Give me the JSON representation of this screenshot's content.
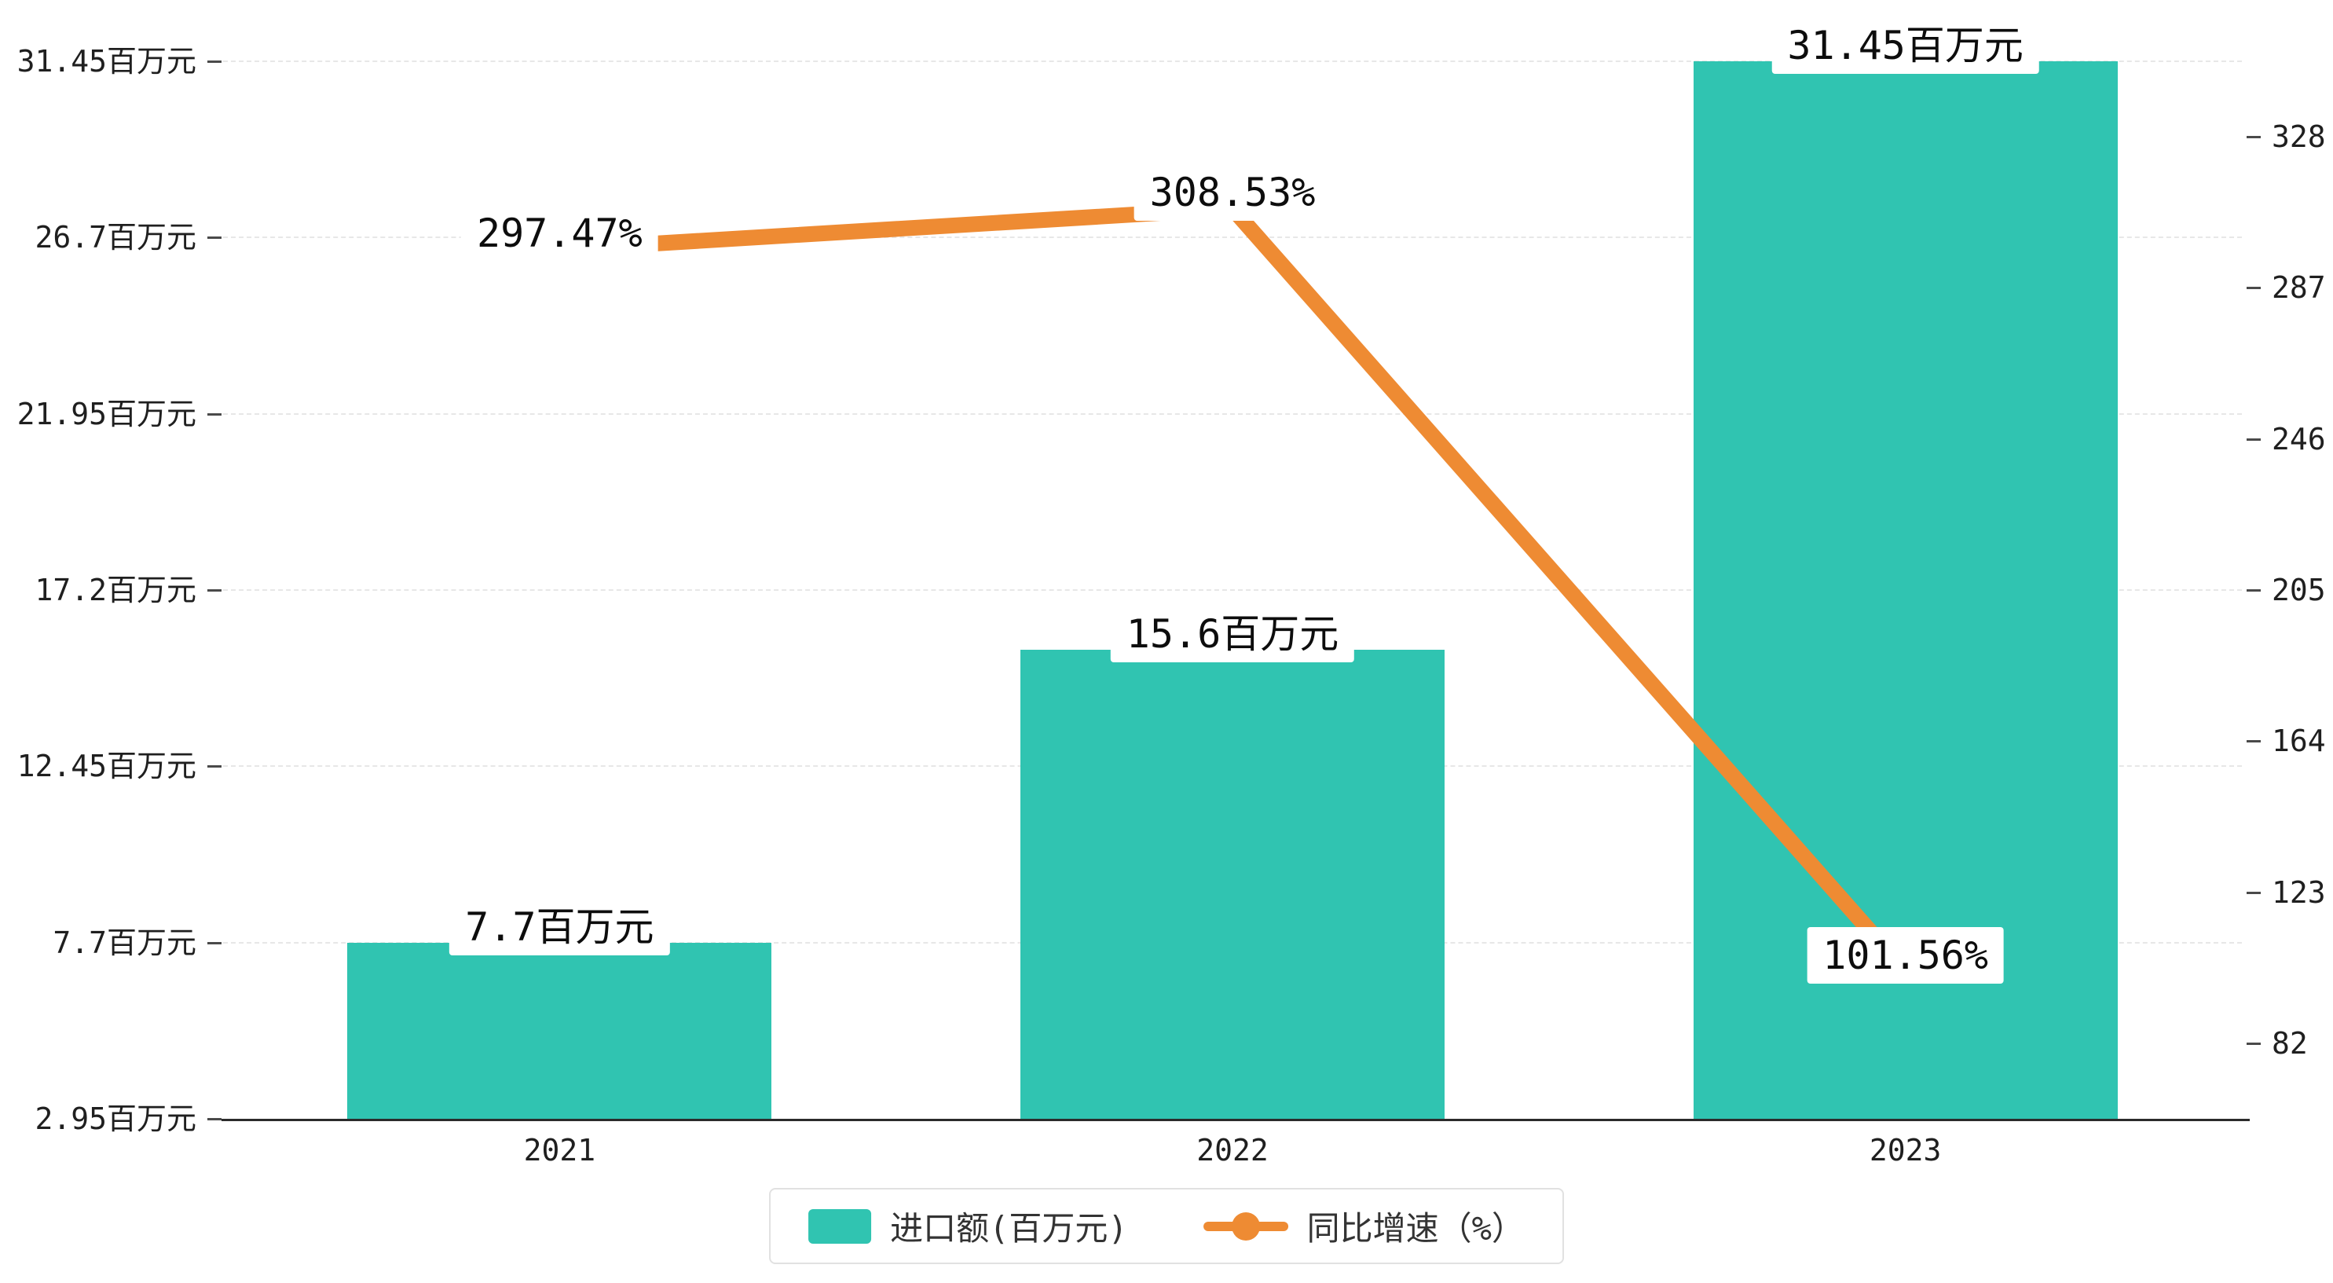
{
  "chart_data": {
    "type": "bar+line",
    "categories": [
      "2021",
      "2022",
      "2023"
    ],
    "series": [
      {
        "name": "进口额(百万元)",
        "type": "bar",
        "axis": "left",
        "values": [
          7.7,
          15.6,
          31.45
        ],
        "data_labels": [
          "7.7百万元",
          "15.6百万元",
          "31.45百万元"
        ],
        "color": "#30c4b1"
      },
      {
        "name": "同比增速（%）",
        "type": "line",
        "axis": "right",
        "values": [
          297.47,
          308.53,
          101.56
        ],
        "data_labels": [
          "297.47%",
          "308.53%",
          "101.56%"
        ],
        "color": "#ee8b33"
      }
    ],
    "left_axis": {
      "min": 2.95,
      "max": 31.45,
      "ticks": [
        2.95,
        7.7,
        12.45,
        17.2,
        21.95,
        26.7,
        31.45
      ],
      "tick_labels": [
        "2.95百万元",
        "7.7百万元",
        "12.45百万元",
        "17.2百万元",
        "21.95百万元",
        "26.7百万元",
        "31.45百万元"
      ]
    },
    "right_axis": {
      "min": 61.5,
      "max": 348.5,
      "ticks": [
        82,
        123,
        164,
        205,
        246,
        287,
        328
      ],
      "tick_labels": [
        "82",
        "123",
        "164",
        "205",
        "246",
        "287",
        "328"
      ]
    },
    "grid": "dashed horizontal gridlines",
    "legend_position": "bottom-center",
    "background_color": "#ffffff",
    "text_color": "#1f1f1f"
  }
}
